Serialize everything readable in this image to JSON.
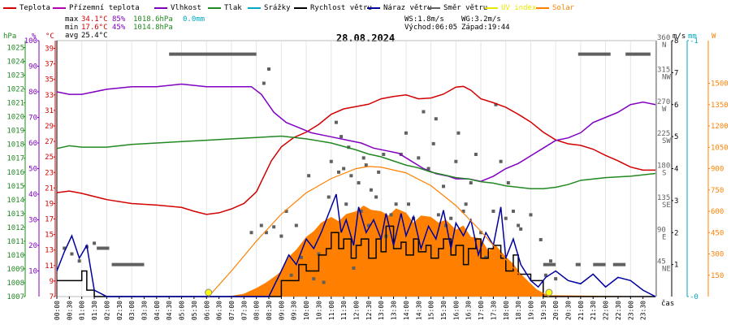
{
  "legend": [
    {
      "label": "Teplota",
      "color": "#d20000"
    },
    {
      "label": "Přízemní teplota",
      "color": "#b400b4"
    },
    {
      "label": "Vlhkost",
      "color": "#8000c0"
    },
    {
      "label": "Tlak",
      "color": "#228822"
    },
    {
      "label": "Srážky",
      "color": "#00a8c0"
    },
    {
      "label": "Rychlost větru",
      "color": "#000000"
    },
    {
      "label": "Náraz větru",
      "color": "#0000a0"
    },
    {
      "label": "Směr větru",
      "color": "#606060"
    },
    {
      "label": "UV index",
      "color": "#e8e800"
    },
    {
      "label": "Solar",
      "color": "#ff8000"
    }
  ],
  "stats": {
    "max_label": "max",
    "max_temp": "34.1°C",
    "max_hum": "85%",
    "max_press": "1018.6hPa",
    "precip": "0.0mm",
    "min_label": "min",
    "min_temp": "17.6°C",
    "min_hum": "45%",
    "min_press": "1014.8hPa",
    "avg_label": "avg",
    "avg_temp": "25.4°C",
    "ws": "WS:1.8m/s",
    "wg": "WG:3.2m/s",
    "sunrise": "Východ:06:05",
    "sunset": "Západ:19:44"
  },
  "units": {
    "hpa": "hPa",
    "pct": "%",
    "degc": "°C",
    "ms": "m/s",
    "mm": "mm",
    "w": "W",
    "time": "čas"
  },
  "chart_data": {
    "type": "line",
    "title": "28.08.2024",
    "x_unit": "hours",
    "xlim": [
      0,
      24
    ],
    "x_tick_labels": [
      "00:00",
      "00:30",
      "01:00",
      "01:30",
      "02:00",
      "02:30",
      "03:00",
      "03:30",
      "04:00",
      "04:30",
      "05:00",
      "05:30",
      "06:00",
      "06:30",
      "07:00",
      "07:30",
      "08:00",
      "08:30",
      "09:00",
      "09:30",
      "10:00",
      "10:30",
      "11:00",
      "11:30",
      "12:00",
      "12:30",
      "13:00",
      "13:30",
      "14:00",
      "14:30",
      "15:00",
      "15:30",
      "16:00",
      "16:30",
      "17:00",
      "17:30",
      "18:00",
      "18:30",
      "19:00",
      "19:30",
      "20:00",
      "20:30",
      "21:00",
      "21:30",
      "22:00",
      "22:30",
      "23:00",
      "23:30"
    ],
    "axes": {
      "hpa": {
        "ticks": [
          "1007",
          "1008",
          "1009",
          "1010",
          "1011",
          "1012",
          "1013",
          "1014",
          "1015",
          "1016",
          "1017",
          "1018",
          "1019",
          "1020",
          "1021",
          "1022",
          "1023",
          "1024",
          "1025"
        ],
        "range": [
          1007,
          1025.5
        ],
        "color": "#228822"
      },
      "pct": {
        "ticks": [
          "10",
          "20",
          "30",
          "40",
          "50",
          "60",
          "70",
          "80",
          "90",
          "100"
        ],
        "range": [
          0,
          100
        ],
        "color": "#8000c0"
      },
      "degc": {
        "ticks": [
          "7",
          "9",
          "11",
          "13",
          "15",
          "17",
          "19",
          "21",
          "23",
          "25",
          "27",
          "29",
          "31",
          "33",
          "35",
          "37",
          "39"
        ],
        "range": [
          7,
          40
        ],
        "color": "#d20000"
      },
      "dir": {
        "ticks": [
          "45 NE",
          "90 E",
          "135 SE",
          "180 S",
          "225 SW",
          "270 W",
          "315 NW",
          "360 N"
        ],
        "range": [
          0,
          360
        ],
        "color": "#606060"
      },
      "ms": {
        "ticks": [
          "1",
          "2",
          "3",
          "4",
          "5",
          "6",
          "7",
          "8"
        ],
        "range": [
          0,
          8
        ],
        "color": "#000000"
      },
      "mm": {
        "ticks": [
          "-0",
          "-1"
        ],
        "range": [
          0,
          1
        ],
        "color": "#00a8c0"
      },
      "w": {
        "ticks": [
          "150",
          "300",
          "450",
          "600",
          "750",
          "900",
          "1050",
          "1200",
          "1350",
          "1500"
        ],
        "range": [
          0,
          1800
        ],
        "color": "#ff8000"
      }
    },
    "series": [
      {
        "name": "Teplota",
        "axis": "degc",
        "color": "#d20000",
        "x": [
          0,
          0.5,
          1,
          2,
          3,
          4,
          5,
          5.5,
          6,
          6.5,
          7,
          7.5,
          8,
          8.3,
          8.6,
          9,
          9.5,
          10,
          10.5,
          11,
          11.5,
          12,
          12.5,
          13,
          13.5,
          14,
          14.5,
          15,
          15.5,
          16,
          16.3,
          16.6,
          17,
          17.5,
          18,
          18.5,
          19,
          19.5,
          20,
          20.5,
          21,
          21.5,
          22,
          22.5,
          23,
          23.5,
          24
        ],
        "y": [
          20.4,
          20.6,
          20.3,
          19.5,
          19.0,
          18.8,
          18.5,
          18.0,
          17.6,
          17.8,
          18.3,
          19.0,
          20.5,
          22.5,
          24.5,
          26.3,
          27.5,
          28.2,
          29.2,
          30.5,
          31.2,
          31.5,
          31.8,
          32.5,
          32.8,
          33.0,
          32.5,
          32.6,
          33.1,
          34.0,
          34.1,
          33.6,
          32.5,
          32.0,
          31.4,
          30.5,
          29.5,
          28.2,
          27.2,
          26.7,
          26.5,
          26.0,
          25.2,
          24.5,
          23.7,
          23.3,
          23.3
        ]
      },
      {
        "name": "Vlhkost",
        "axis": "pct",
        "color": "#8000c0",
        "x": [
          0,
          0.5,
          1,
          2,
          3,
          4,
          5,
          6,
          7,
          7.8,
          8.2,
          8.7,
          9.2,
          9.7,
          10.2,
          10.7,
          11.2,
          11.7,
          12.2,
          12.7,
          13.2,
          13.7,
          14.2,
          14.7,
          15.2,
          15.7,
          16,
          16.5,
          17,
          17.5,
          18,
          18.5,
          19,
          19.5,
          20,
          20.5,
          21,
          21.5,
          22,
          22.5,
          23,
          23.5,
          24
        ],
        "y": [
          80,
          79,
          79,
          81,
          82,
          82,
          83,
          82,
          82,
          82,
          79,
          72,
          68,
          66,
          64,
          63,
          62,
          61,
          60,
          58,
          57,
          56,
          53,
          50,
          48,
          47,
          46,
          46,
          45,
          47,
          50,
          52,
          55,
          58,
          61,
          62,
          64,
          68,
          70,
          72,
          75,
          76,
          75
        ]
      },
      {
        "name": "Tlak",
        "axis": "hpa",
        "color": "#228822",
        "x": [
          0,
          0.5,
          1,
          2,
          3,
          4,
          5,
          6,
          7,
          8,
          9,
          10,
          11,
          12,
          12.5,
          13,
          13.5,
          14,
          14.5,
          15,
          15.5,
          16,
          16.5,
          17,
          17.5,
          18,
          18.5,
          19,
          19.5,
          20,
          20.5,
          21,
          22,
          23,
          24
        ],
        "y": [
          1017.7,
          1017.9,
          1017.8,
          1017.8,
          1018.0,
          1018.1,
          1018.2,
          1018.3,
          1018.4,
          1018.5,
          1018.6,
          1018.4,
          1018.1,
          1017.6,
          1017.3,
          1017.1,
          1016.8,
          1016.5,
          1016.3,
          1016.0,
          1015.8,
          1015.6,
          1015.5,
          1015.3,
          1015.2,
          1015.0,
          1014.9,
          1014.8,
          1014.8,
          1014.9,
          1015.1,
          1015.4,
          1015.6,
          1015.7,
          1015.9
        ]
      },
      {
        "name": "Rychlost větru",
        "axis": "ms",
        "color": "#000000",
        "step": true,
        "x": [
          0,
          0.5,
          1,
          1.2,
          1.5,
          2,
          8.5,
          9,
          9.3,
          9.7,
          10,
          10.5,
          10.8,
          11,
          11.3,
          11.5,
          11.8,
          12,
          12.2,
          12.5,
          12.8,
          13,
          13.2,
          13.5,
          13.8,
          14,
          14.3,
          14.5,
          14.8,
          15,
          15.3,
          15.5,
          15.8,
          16,
          16.3,
          16.5,
          16.8,
          17,
          17.3,
          17.5,
          17.8,
          18,
          18.3,
          18.5,
          19,
          19.5,
          20,
          24
        ],
        "y": [
          0.5,
          0.5,
          0.8,
          0.2,
          0,
          0,
          0,
          0.5,
          0.5,
          1.0,
          0.8,
          1.3,
          1.5,
          2.0,
          1.5,
          1.8,
          1.2,
          1.6,
          1.8,
          1.2,
          1.8,
          1.4,
          2.2,
          1.5,
          1.7,
          1.3,
          1.8,
          1.4,
          1.6,
          1.2,
          1.5,
          1.8,
          1.3,
          1.6,
          1.0,
          1.5,
          1.8,
          1.2,
          1.5,
          1.6,
          1.2,
          0.8,
          1.3,
          0.7,
          0.5,
          0,
          0,
          0
        ]
      },
      {
        "name": "Náraz větru",
        "axis": "ms",
        "color": "#0000a0",
        "x": [
          0,
          0.3,
          0.6,
          0.9,
          1.2,
          1.5,
          2,
          8.5,
          9,
          9.3,
          9.6,
          10,
          10.3,
          10.6,
          11,
          11.2,
          11.4,
          11.6,
          11.9,
          12.1,
          12.4,
          12.7,
          13,
          13.2,
          13.5,
          13.8,
          14,
          14.3,
          14.6,
          14.9,
          15.2,
          15.5,
          15.8,
          16,
          16.3,
          16.6,
          16.9,
          17.2,
          17.5,
          17.8,
          18,
          18.3,
          18.6,
          19,
          19.3,
          19.6,
          20,
          20.5,
          21,
          21.5,
          22,
          22.5,
          23,
          23.5,
          24
        ],
        "y": [
          0.8,
          1.4,
          1.9,
          1.2,
          1.6,
          0.2,
          0,
          0,
          0.8,
          1.3,
          1.0,
          1.8,
          1.5,
          2.0,
          2.8,
          3.2,
          2.0,
          2.4,
          1.6,
          2.8,
          2.0,
          2.4,
          1.8,
          2.6,
          1.6,
          2.6,
          1.9,
          2.5,
          1.5,
          2.2,
          1.8,
          2.7,
          1.5,
          2.3,
          1.9,
          2.4,
          1.3,
          2.0,
          1.6,
          2.8,
          1.2,
          1.8,
          1.0,
          0.5,
          0.3,
          0.6,
          0.8,
          0.5,
          0.4,
          0.7,
          0.3,
          0.6,
          0.5,
          0.2,
          0
        ]
      },
      {
        "name": "Solar",
        "axis": "w",
        "color": "#ff8000",
        "area": true,
        "x": [
          0,
          6.2,
          6.6,
          7,
          7.5,
          8,
          8.4,
          8.8,
          9,
          9.3,
          9.6,
          10,
          10.3,
          10.6,
          11,
          11.3,
          11.6,
          12,
          12.3,
          12.6,
          13,
          13.3,
          13.6,
          14,
          14.3,
          14.6,
          15,
          15.3,
          15.6,
          16,
          16.3,
          16.6,
          17,
          17.3,
          17.6,
          18,
          18.3,
          18.6,
          19,
          19.3,
          19.6,
          24
        ],
        "y": [
          0,
          0,
          0,
          5,
          20,
          60,
          100,
          150,
          180,
          280,
          330,
          420,
          460,
          520,
          560,
          530,
          580,
          600,
          640,
          610,
          600,
          570,
          620,
          590,
          520,
          570,
          560,
          520,
          540,
          470,
          500,
          420,
          410,
          320,
          360,
          280,
          230,
          160,
          90,
          40,
          10,
          0
        ]
      },
      {
        "name": "Solar",
        "axis": "w",
        "color": "#ff8000",
        "curve": true,
        "x": [
          6.08,
          7,
          8,
          9,
          10,
          11,
          12,
          12.5,
          13,
          14,
          15,
          16,
          17,
          18,
          19,
          19.73
        ],
        "y": [
          0,
          180,
          390,
          580,
          730,
          830,
          900,
          915,
          910,
          870,
          780,
          640,
          460,
          260,
          70,
          0
        ]
      }
    ],
    "wind_dir": {
      "axis": "dir",
      "segments": [
        {
          "x": [
            4.5,
            8
          ],
          "y": 341
        },
        {
          "x": 1.6,
          "y2": 2.1,
          "y": 68
        },
        {
          "x": [
            2.2,
            3.5
          ],
          "y": 45
        },
        {
          "x": [
            19.5,
            20
          ],
          "y": 45
        },
        {
          "x": [
            20.8,
            21
          ],
          "y": 45
        },
        {
          "x": [
            21.5,
            22
          ],
          "y": 45
        },
        {
          "x": [
            22.3,
            22.8
          ],
          "y": 45
        },
        {
          "x": [
            20.9,
            22.2
          ],
          "y": 341
        },
        {
          "x": [
            22.8,
            23.8
          ],
          "y": 341
        }
      ],
      "points": [
        {
          "x": 0.3,
          "y": 68
        },
        {
          "x": 0.6,
          "y": 60
        },
        {
          "x": 0.9,
          "y": 50
        },
        {
          "x": 1.2,
          "y": 70
        },
        {
          "x": 1.5,
          "y": 75
        },
        {
          "x": 8.3,
          "y": 300
        },
        {
          "x": 8.5,
          "y": 320
        },
        {
          "x": 8.4,
          "y": 90
        },
        {
          "x": 8.7,
          "y": 98
        },
        {
          "x": 9.0,
          "y": 85
        },
        {
          "x": 9.2,
          "y": 120
        },
        {
          "x": 9.4,
          "y": 30
        },
        {
          "x": 9.6,
          "y": 100
        },
        {
          "x": 9.8,
          "y": 55
        },
        {
          "x": 10.1,
          "y": 170
        },
        {
          "x": 10.3,
          "y": 25
        },
        {
          "x": 10.5,
          "y": 60
        },
        {
          "x": 10.7,
          "y": 20
        },
        {
          "x": 10.9,
          "y": 140
        },
        {
          "x": 11.0,
          "y": 190
        },
        {
          "x": 11.2,
          "y": 245
        },
        {
          "x": 11.3,
          "y": 175
        },
        {
          "x": 11.5,
          "y": 180
        },
        {
          "x": 11.6,
          "y": 130
        },
        {
          "x": 11.7,
          "y": 210
        },
        {
          "x": 11.8,
          "y": 170
        },
        {
          "x": 11.9,
          "y": 40
        },
        {
          "x": 12.1,
          "y": 160
        },
        {
          "x": 12.2,
          "y": 120
        },
        {
          "x": 12.4,
          "y": 185
        },
        {
          "x": 12.5,
          "y": 100
        },
        {
          "x": 12.6,
          "y": 150
        },
        {
          "x": 12.8,
          "y": 140
        },
        {
          "x": 12.9,
          "y": 175
        },
        {
          "x": 13.1,
          "y": 200
        },
        {
          "x": 13.2,
          "y": 85
        },
        {
          "x": 13.4,
          "y": 115
        },
        {
          "x": 13.6,
          "y": 130
        },
        {
          "x": 13.8,
          "y": 200
        },
        {
          "x": 14.0,
          "y": 230
        },
        {
          "x": 14.1,
          "y": 130
        },
        {
          "x": 14.3,
          "y": 110
        },
        {
          "x": 14.5,
          "y": 195
        },
        {
          "x": 14.7,
          "y": 260
        },
        {
          "x": 14.9,
          "y": 180
        },
        {
          "x": 15.1,
          "y": 215
        },
        {
          "x": 15.3,
          "y": 115
        },
        {
          "x": 15.5,
          "y": 155
        },
        {
          "x": 15.6,
          "y": 100
        },
        {
          "x": 15.8,
          "y": 110
        },
        {
          "x": 16.0,
          "y": 190
        },
        {
          "x": 16.3,
          "y": 120
        },
        {
          "x": 16.4,
          "y": 130
        },
        {
          "x": 16.6,
          "y": 160
        },
        {
          "x": 16.8,
          "y": 200
        },
        {
          "x": 17.0,
          "y": 90
        },
        {
          "x": 17.2,
          "y": 55
        },
        {
          "x": 17.5,
          "y": 120
        },
        {
          "x": 17.8,
          "y": 190
        },
        {
          "x": 18.0,
          "y": 110
        },
        {
          "x": 18.1,
          "y": 160
        },
        {
          "x": 18.3,
          "y": 120
        },
        {
          "x": 18.5,
          "y": 100
        },
        {
          "x": 18.6,
          "y": 95
        },
        {
          "x": 19.0,
          "y": 115
        },
        {
          "x": 19.4,
          "y": 80
        },
        {
          "x": 19.6,
          "y": 30
        },
        {
          "x": 19.8,
          "y": 50
        },
        {
          "x": 20.0,
          "y": 25
        },
        {
          "x": 7.8,
          "y": 90
        },
        {
          "x": 8.2,
          "y": 100
        },
        {
          "x": 17.6,
          "y": 270
        },
        {
          "x": 16.1,
          "y": 230
        },
        {
          "x": 15.2,
          "y": 250
        },
        {
          "x": 11.4,
          "y": 225
        },
        {
          "x": 12.3,
          "y": 195
        }
      ]
    },
    "uv_markers": [
      {
        "x": 6.08,
        "y": 0
      },
      {
        "x": 19.73,
        "y": 0
      }
    ]
  }
}
